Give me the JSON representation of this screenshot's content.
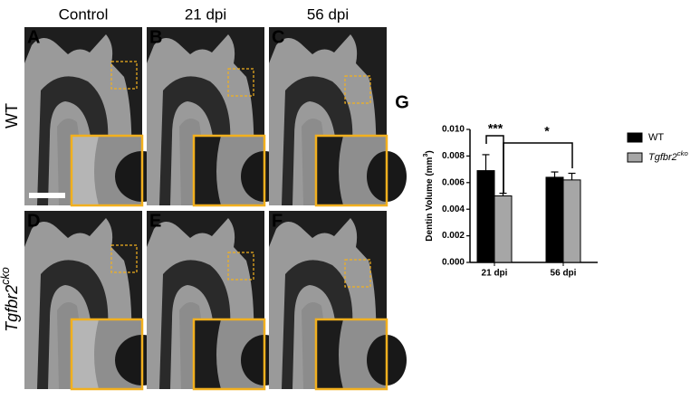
{
  "panels": {
    "columns": [
      "Control",
      "21 dpi",
      "56 dpi"
    ],
    "rows": [
      {
        "label": "WT"
      },
      {
        "label": "Tgfbr2",
        "label_sup": "cko"
      }
    ],
    "letters": [
      "A",
      "B",
      "C",
      "D",
      "E",
      "F"
    ]
  },
  "chart_data": {
    "type": "bar",
    "panel_letter": "G",
    "ylabel": "Dentin Volume (mm",
    "ylabel_sup": "3",
    "ylabel_end": ")",
    "categories": [
      "21 dpi",
      "56 dpi"
    ],
    "series": [
      {
        "name": "WT",
        "color": "#000000",
        "values": [
          0.0069,
          0.0064
        ],
        "errors": [
          0.0012,
          0.0004
        ]
      },
      {
        "name": "Tgfbr2",
        "name_sup": "cko",
        "color": "#a6a6a6",
        "values": [
          0.005,
          0.0062
        ],
        "errors": [
          0.0002,
          0.0005
        ]
      }
    ],
    "ylim": [
      0,
      0.01
    ],
    "yticks": [
      {
        "value": 0,
        "label": "0.000"
      },
      {
        "value": 0.002,
        "label": "0.002"
      },
      {
        "value": 0.004,
        "label": "0.004"
      },
      {
        "value": 0.006,
        "label": "0.006"
      },
      {
        "value": 0.008,
        "label": "0.008"
      },
      {
        "value": 0.01,
        "label": "0.010"
      }
    ],
    "annotations": [
      "***",
      "*"
    ]
  }
}
